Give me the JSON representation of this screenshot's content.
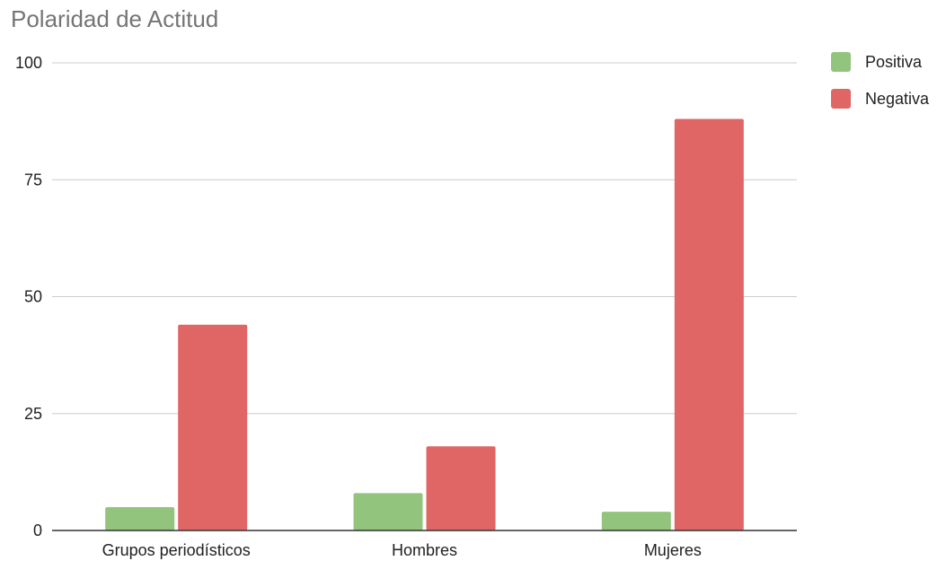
{
  "chart_data": {
    "type": "bar",
    "title": "Polaridad de Actitud",
    "categories": [
      "Grupos periodísticos",
      "Hombres",
      "Mujeres"
    ],
    "series": [
      {
        "name": "Positiva",
        "values": [
          5,
          8,
          4
        ],
        "color": "#93c47d"
      },
      {
        "name": "Negativa",
        "values": [
          44,
          18,
          88
        ],
        "color": "#e06666"
      }
    ],
    "y_ticks": [
      "0",
      "25",
      "50",
      "75",
      "100"
    ],
    "ylim": [
      0,
      100
    ],
    "xlabel": "",
    "ylabel": "",
    "grid": true,
    "legend_position": "right"
  }
}
